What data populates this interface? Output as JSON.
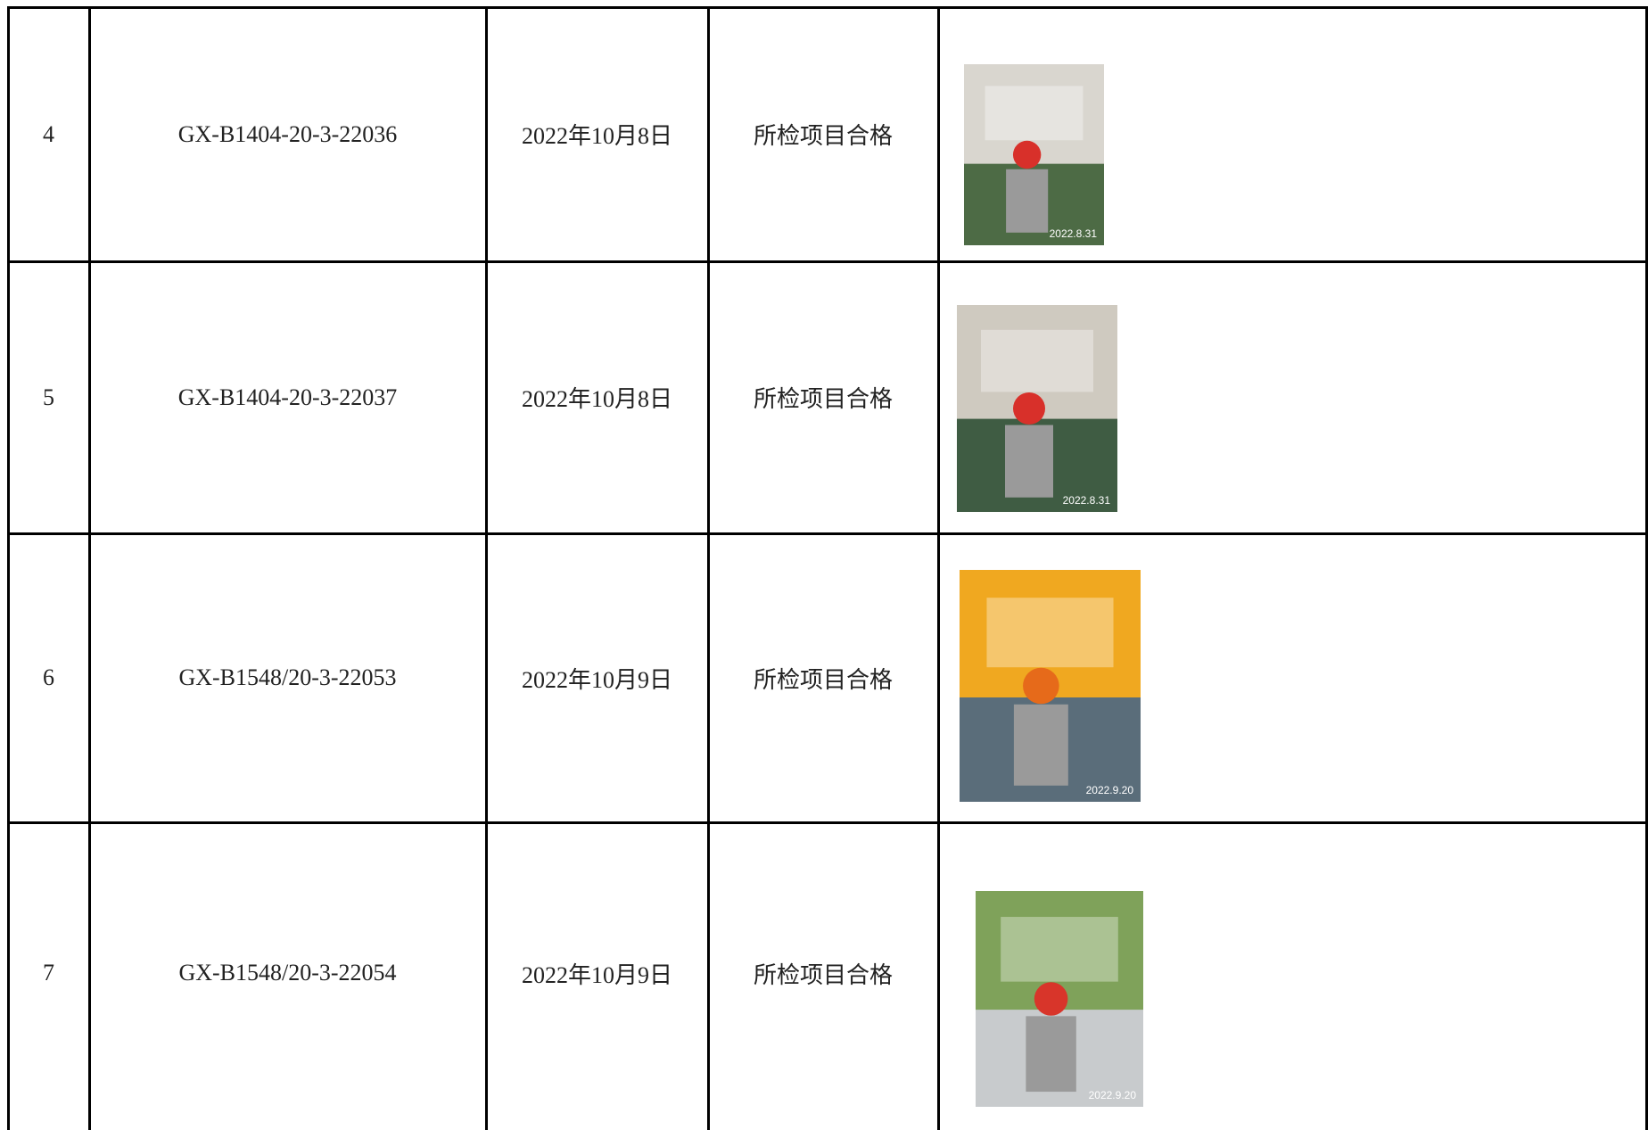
{
  "table": {
    "rows": [
      {
        "no": "4",
        "code": "GX-B1404-20-3-22036",
        "date": "2022年10月8日",
        "result": "所检项目合格",
        "photo_date": "2022.8.31"
      },
      {
        "no": "5",
        "code": "GX-B1404-20-3-22037",
        "date": "2022年10月8日",
        "result": "所检项目合格",
        "photo_date": "2022.8.31"
      },
      {
        "no": "6",
        "code": "GX-B1548/20-3-22053",
        "date": "2022年10月9日",
        "result": "所检项目合格",
        "photo_date": "2022.9.20"
      },
      {
        "no": "7",
        "code": "GX-B1548/20-3-22054",
        "date": "2022年10月9日",
        "result": "所检项目合格",
        "photo_date": "2022.9.20"
      }
    ]
  }
}
